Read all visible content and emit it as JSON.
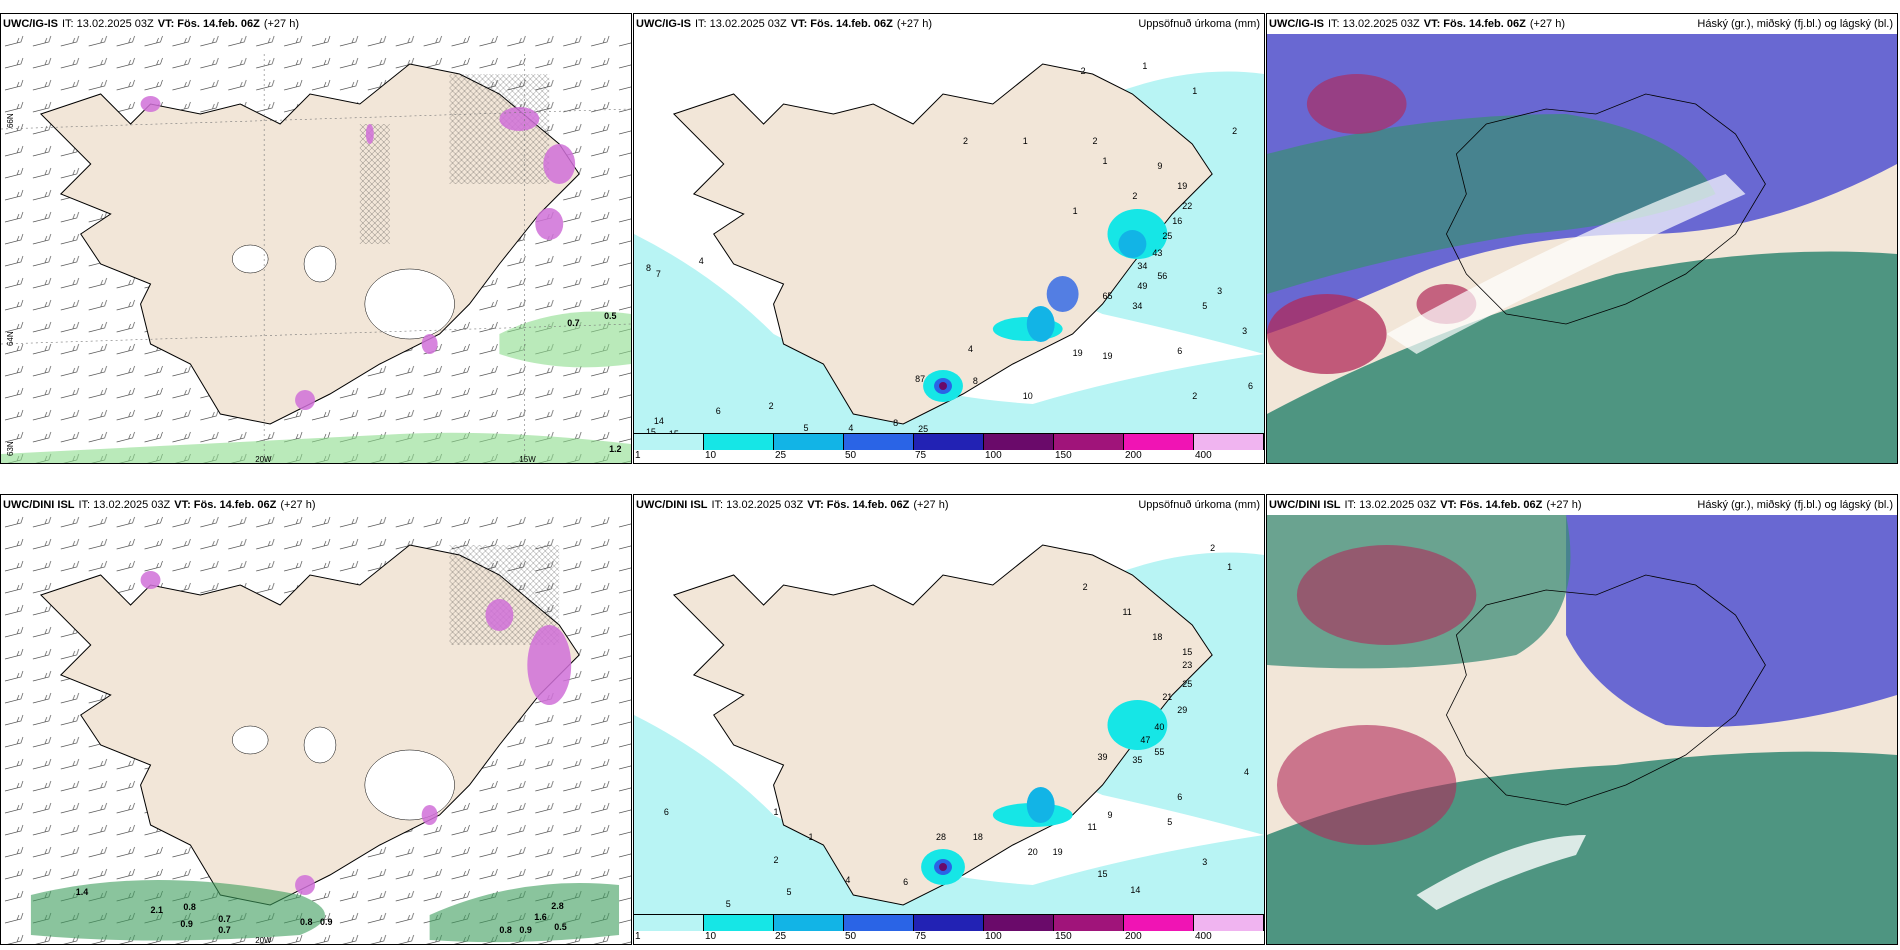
{
  "colors": {
    "land": "#f2e6d8",
    "sea_precip_light": "#b8f4f4",
    "cyan": "#16e6e6",
    "blue1": "#12b4e6",
    "blue2": "#2a64e6",
    "blue3": "#2222b4",
    "purple1": "#6a0a6a",
    "purple2": "#a0147a",
    "magenta": "#f014b4",
    "pink": "#f0b4f0",
    "high_cloud": "#b02a5a",
    "mid_cloud": "#5a5ad2",
    "low_cloud": "#3c8c78",
    "green_precip": "#8cdc8c"
  },
  "panels": {
    "top_left": {
      "model": "UWC/IG-IS",
      "it_label": "IT: 13.02.2025 03Z",
      "vt_label": "VT: Fös. 14.feb. 06Z",
      "lead": "(+27 h)",
      "right": ""
    },
    "top_mid": {
      "model": "UWC/IG-IS",
      "it_label": "IT: 13.02.2025 03Z",
      "vt_label": "VT: Fös. 14.feb. 06Z",
      "lead": "(+27 h)",
      "right": "Uppsöfnuð úrkoma (mm)"
    },
    "top_right": {
      "model": "UWC/IG-IS",
      "it_label": "IT: 13.02.2025 03Z",
      "vt_label": "VT: Fös. 14.feb. 06Z",
      "lead": "(+27 h)",
      "right": "Háský (gr.), miðský (fj.bl.) og lágský (bl.)"
    },
    "bot_left": {
      "model": "UWC/DINI ISL",
      "it_label": "IT: 13.02.2025 03Z",
      "vt_label": "VT: Fös. 14.feb. 06Z",
      "lead": "(+27 h)",
      "right": ""
    },
    "bot_mid": {
      "model": "UWC/DINI ISL",
      "it_label": "IT: 13.02.2025 03Z",
      "vt_label": "VT: Fös. 14.feb. 06Z",
      "lead": "(+27 h)",
      "right": "Uppsöfnuð úrkoma (mm)"
    },
    "bot_right": {
      "model": "UWC/DINI ISL",
      "it_label": "IT: 13.02.2025 03Z",
      "vt_label": "VT: Fös. 14.feb. 06Z",
      "lead": "(+27 h)",
      "right": "Háský (gr.), miðský (fj.bl.) og lágský (bl.)"
    }
  },
  "axes": {
    "lat66": "66N",
    "lat64": "64N",
    "lat63": "63N",
    "lon20": "20W",
    "lon15": "15W"
  },
  "legend": {
    "labels": [
      "1",
      "10",
      "25",
      "50",
      "75",
      "100",
      "150",
      "200",
      "400",
      ""
    ]
  },
  "top_left_values": [
    "0.5",
    "0.7",
    "1.2"
  ],
  "bot_left_values": [
    "1.4",
    "2.1",
    "0.8",
    "0.7",
    "0.9",
    "0.7",
    "0.8",
    "0.9",
    "2.8",
    "1.6",
    "0.8",
    "0.9",
    "0.5"
  ],
  "top_mid_values": [
    "2",
    "1",
    "1",
    "1",
    "2",
    "1",
    "2",
    "2",
    "2",
    "1",
    "9",
    "19",
    "22",
    "16",
    "25",
    "43",
    "34",
    "56",
    "49",
    "65",
    "34",
    "19",
    "3",
    "5",
    "3",
    "6",
    "2",
    "6",
    "4",
    "8",
    "10",
    "19",
    "87",
    "25",
    "8",
    "6",
    "2",
    "5",
    "4",
    "8",
    "7",
    "4",
    "14",
    "15",
    "15"
  ],
  "bot_mid_values": [
    "2",
    "1",
    "2",
    "11",
    "18",
    "15",
    "23",
    "25",
    "21",
    "29",
    "40",
    "47",
    "55",
    "35",
    "39",
    "4",
    "6",
    "5",
    "9",
    "11",
    "20",
    "19",
    "15",
    "14",
    "28",
    "18",
    "3",
    "5",
    "6",
    "2",
    "4",
    "6",
    "5",
    "1",
    "1"
  ]
}
